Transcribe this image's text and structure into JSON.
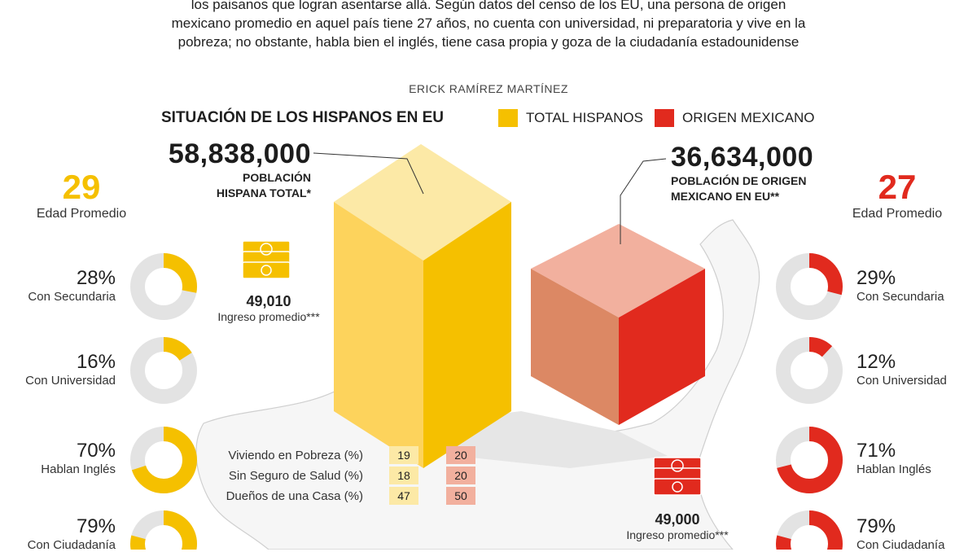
{
  "intro": {
    "line1": "los paisanos que logran asentarse allá. Según datos del censo de los EU, una persona de origen",
    "line2": "mexicano promedio en aquel país tiene 27 años, no cuenta con universidad, ni preparatoria y vive en la",
    "line3": "pobreza; no obstante, habla bien el inglés, tiene casa propia y goza de la ciudadanía estadounidense"
  },
  "byline": "ERICK RAMÍREZ MARTÍNEZ",
  "colors": {
    "hispanos": "#F5C000",
    "mexicano": "#E12A1E",
    "donut_bg": "#E3E3E3"
  },
  "chart_data": {
    "type": "bar",
    "title": "SITUACIÓN DE LOS HISPANOS EN EU",
    "legend": [
      "TOTAL HISPANOS",
      "ORIGEN MEXICANO"
    ],
    "population": {
      "hispanos": {
        "value": 58838000,
        "display": "58,838,000",
        "label_line1": "POBLACIÓN",
        "label_line2": "HISPANA TOTAL*"
      },
      "mexicano": {
        "value": 36634000,
        "display": "36,634,000",
        "label_line1": "POBLACIÓN DE ORIGEN",
        "label_line2": "MEXICANO EN EU**"
      }
    },
    "age": {
      "hispanos": {
        "value": "29",
        "label": "Edad Promedio"
      },
      "mexicano": {
        "value": "27",
        "label": "Edad Promedio"
      }
    },
    "income": {
      "hispanos": {
        "value": "49,010",
        "label": "Ingreso promedio***"
      },
      "mexicano": {
        "value": "49,000",
        "label": "Ingreso promedio***"
      }
    },
    "donuts": {
      "hispanos": [
        {
          "pct": 28,
          "display": "28%",
          "label": "Con Secundaria"
        },
        {
          "pct": 16,
          "display": "16%",
          "label": "Con Universidad"
        },
        {
          "pct": 70,
          "display": "70%",
          "label": "Hablan Inglés"
        },
        {
          "pct": 79,
          "display": "79%",
          "label": "Con Ciudadanía"
        }
      ],
      "mexicano": [
        {
          "pct": 29,
          "display": "29%",
          "label": "Con Secundaria"
        },
        {
          "pct": 12,
          "display": "12%",
          "label": "Con Universidad"
        },
        {
          "pct": 71,
          "display": "71%",
          "label": "Hablan Inglés"
        },
        {
          "pct": 79,
          "display": "79%",
          "label": "Con Ciudadanía"
        }
      ]
    },
    "table": {
      "rows": [
        {
          "label": "Viviendo en Pobreza (%)",
          "hispanos": 19,
          "mexicano": 20
        },
        {
          "label": "Sin Seguro de Salud (%)",
          "hispanos": 18,
          "mexicano": 20
        },
        {
          "label": "Dueños de una Casa (%)",
          "hispanos": 47,
          "mexicano": 50
        }
      ]
    }
  }
}
